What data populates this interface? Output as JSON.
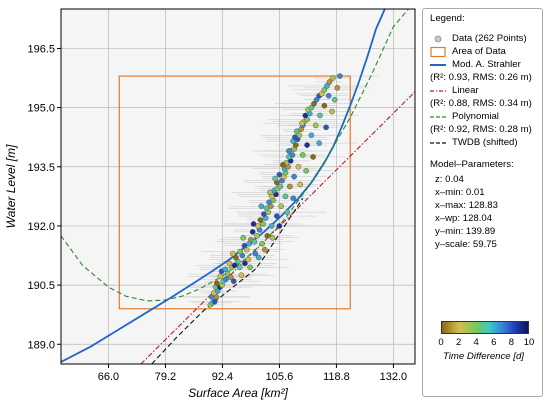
{
  "chart_data": {
    "type": "scatter",
    "xlabel": "Surface Area [km²]",
    "ylabel": "Water Level [m]",
    "xlim": [
      55.0,
      137.0
    ],
    "ylim": [
      188.5,
      197.5
    ],
    "xticks": [
      "66.0",
      "79.2",
      "92.4",
      "105.6",
      "118.8",
      "132.0"
    ],
    "xtick_values": [
      66.0,
      79.2,
      92.4,
      105.6,
      118.8,
      132.0
    ],
    "yticks": [
      "189.0",
      "190.5",
      "192.0",
      "193.5",
      "195.0",
      "196.5"
    ],
    "ytick_values": [
      189.0,
      190.5,
      192.0,
      193.5,
      195.0,
      196.5
    ],
    "grid": true,
    "legend_placement": "right of plot",
    "area_of_data": {
      "x_min": 68.5,
      "x_max": 122.0,
      "y_min": 189.9,
      "y_max": 195.8
    },
    "series": [
      {
        "name": "Data (262 Points)",
        "kind": "points",
        "count": 262,
        "points": [
          [
            89.6,
            190.0,
            3
          ],
          [
            90.1,
            190.05,
            5
          ],
          [
            90.6,
            190.08,
            8
          ],
          [
            91.0,
            190.2,
            1
          ],
          [
            89.9,
            190.2,
            7
          ],
          [
            90.4,
            190.3,
            2
          ],
          [
            91.3,
            190.35,
            6
          ],
          [
            90.8,
            190.45,
            4
          ],
          [
            91.8,
            190.45,
            9
          ],
          [
            92.3,
            190.5,
            3
          ],
          [
            91.1,
            190.55,
            0
          ],
          [
            92.6,
            190.6,
            5
          ],
          [
            93.2,
            190.65,
            7
          ],
          [
            91.9,
            190.72,
            2
          ],
          [
            93.6,
            190.78,
            4
          ],
          [
            92.2,
            190.85,
            8
          ],
          [
            94.3,
            190.7,
            1
          ],
          [
            93.1,
            190.9,
            6
          ],
          [
            94.6,
            190.95,
            3
          ],
          [
            95.2,
            191.0,
            9
          ],
          [
            94.0,
            191.05,
            2
          ],
          [
            96.0,
            191.1,
            5
          ],
          [
            95.5,
            191.2,
            0
          ],
          [
            97.0,
            191.25,
            7
          ],
          [
            96.5,
            191.35,
            4
          ],
          [
            98.0,
            191.4,
            2
          ],
          [
            97.5,
            191.5,
            8
          ],
          [
            98.6,
            191.55,
            6
          ],
          [
            99.0,
            191.65,
            1
          ],
          [
            99.8,
            191.6,
            5
          ],
          [
            100.4,
            191.75,
            3
          ],
          [
            99.4,
            191.85,
            9
          ],
          [
            101.0,
            191.9,
            7
          ],
          [
            100.6,
            192.0,
            2
          ],
          [
            101.8,
            192.05,
            4
          ],
          [
            101.2,
            192.15,
            0
          ],
          [
            102.4,
            192.2,
            6
          ],
          [
            102.0,
            192.3,
            8
          ],
          [
            103.0,
            192.35,
            3
          ],
          [
            102.6,
            192.45,
            5
          ],
          [
            103.6,
            192.5,
            1
          ],
          [
            103.2,
            192.6,
            7
          ],
          [
            104.2,
            192.65,
            4
          ],
          [
            103.8,
            192.75,
            2
          ],
          [
            104.8,
            192.8,
            9
          ],
          [
            104.4,
            192.9,
            6
          ],
          [
            105.2,
            192.95,
            3
          ],
          [
            105.8,
            193.0,
            5
          ],
          [
            105.0,
            193.1,
            0
          ],
          [
            106.2,
            193.15,
            7
          ],
          [
            106.6,
            193.25,
            2
          ],
          [
            105.6,
            193.3,
            8
          ],
          [
            107.0,
            193.35,
            4
          ],
          [
            106.8,
            193.45,
            6
          ],
          [
            107.6,
            193.5,
            1
          ],
          [
            107.2,
            193.6,
            3
          ],
          [
            108.2,
            193.65,
            9
          ],
          [
            107.8,
            193.75,
            5
          ],
          [
            108.6,
            193.8,
            7
          ],
          [
            108.2,
            193.9,
            2
          ],
          [
            109.0,
            193.95,
            4
          ],
          [
            109.4,
            194.05,
            0
          ],
          [
            108.8,
            194.15,
            6
          ],
          [
            109.8,
            194.2,
            8
          ],
          [
            110.2,
            194.3,
            3
          ],
          [
            109.6,
            194.4,
            5
          ],
          [
            110.6,
            194.45,
            1
          ],
          [
            111.0,
            194.55,
            7
          ],
          [
            111.4,
            194.65,
            2
          ],
          [
            112.0,
            194.7,
            4
          ],
          [
            111.6,
            194.8,
            9
          ],
          [
            112.6,
            194.85,
            6
          ],
          [
            112.2,
            194.95,
            3
          ],
          [
            113.0,
            195.0,
            5
          ],
          [
            113.6,
            195.1,
            0
          ],
          [
            114.2,
            195.2,
            7
          ],
          [
            114.8,
            195.3,
            8
          ],
          [
            115.4,
            195.35,
            2
          ],
          [
            116.0,
            195.45,
            4
          ],
          [
            116.6,
            195.55,
            6
          ],
          [
            117.2,
            195.65,
            1
          ],
          [
            118.0,
            195.75,
            3
          ],
          [
            96.4,
            190.95,
            5
          ],
          [
            97.6,
            191.05,
            9
          ],
          [
            98.4,
            191.15,
            2
          ],
          [
            100.0,
            191.3,
            7
          ],
          [
            101.6,
            191.55,
            4
          ],
          [
            102.8,
            191.75,
            0
          ],
          [
            103.8,
            192.0,
            6
          ],
          [
            105.0,
            192.25,
            8
          ],
          [
            106.0,
            192.5,
            3
          ],
          [
            107.0,
            192.75,
            5
          ],
          [
            108.0,
            193.0,
            1
          ],
          [
            109.0,
            193.25,
            7
          ],
          [
            110.0,
            193.5,
            2
          ],
          [
            111.0,
            193.8,
            4
          ],
          [
            112.0,
            194.05,
            9
          ],
          [
            113.0,
            194.3,
            6
          ],
          [
            114.0,
            194.55,
            3
          ],
          [
            115.0,
            194.8,
            5
          ],
          [
            116.0,
            195.05,
            0
          ],
          [
            117.0,
            195.3,
            7
          ],
          [
            95.0,
            190.6,
            8
          ],
          [
            96.8,
            190.75,
            2
          ],
          [
            98.8,
            190.95,
            4
          ],
          [
            100.8,
            191.2,
            6
          ],
          [
            102.2,
            191.4,
            1
          ],
          [
            104.0,
            191.7,
            3
          ],
          [
            105.6,
            192.0,
            9
          ],
          [
            107.4,
            192.35,
            5
          ],
          [
            108.8,
            192.7,
            7
          ],
          [
            110.4,
            193.05,
            2
          ],
          [
            111.8,
            193.4,
            4
          ],
          [
            113.4,
            193.75,
            0
          ],
          [
            114.8,
            194.1,
            6
          ],
          [
            116.4,
            194.5,
            8
          ],
          [
            117.8,
            194.9,
            3
          ],
          [
            118.4,
            195.2,
            5
          ],
          [
            119.0,
            195.5,
            1
          ],
          [
            119.6,
            195.8,
            7
          ],
          [
            94.8,
            191.3,
            2
          ],
          [
            97.2,
            191.7,
            4
          ],
          [
            99.6,
            192.05,
            9
          ],
          [
            101.4,
            192.5,
            6
          ],
          [
            103.4,
            192.85,
            3
          ],
          [
            104.6,
            193.2,
            5
          ],
          [
            106.4,
            193.55,
            0
          ],
          [
            107.8,
            193.9,
            7
          ],
          [
            109.2,
            194.25,
            8
          ],
          [
            110.8,
            194.6,
            2
          ]
        ]
      },
      {
        "name": "Area of Data",
        "kind": "rectangle",
        "color": "#e07b2c"
      },
      {
        "name": "Mod. A. Strahler",
        "stats": "(R²: 0.93, RMS: 0.26 m)",
        "color": "#1f66c9",
        "style": "solid",
        "x": [
          55.0,
          62.0,
          68.0,
          74.0,
          80.0,
          85.0,
          90.0,
          94.0,
          98.0,
          102.0,
          106.0,
          110.0,
          113.0,
          116.0,
          118.0,
          120.0,
          122.0,
          124.0,
          126.0,
          128.0,
          129.0,
          130.0
        ],
        "y": [
          188.55,
          188.95,
          189.35,
          189.75,
          190.15,
          190.5,
          190.85,
          191.15,
          191.5,
          191.85,
          192.25,
          192.7,
          193.1,
          193.6,
          194.0,
          194.5,
          195.05,
          195.65,
          196.3,
          197.0,
          197.25,
          197.5
        ]
      },
      {
        "name": "Linear",
        "stats": "(R²: 0.88, RMS: 0.34 m)",
        "color": "#b22222",
        "style": "dashdot",
        "x": [
          73.5,
          137.0
        ],
        "y": [
          188.5,
          195.4
        ]
      },
      {
        "name": "Polynomial",
        "stats": "(R²: 0.92, RMS: 0.28 m)",
        "color": "#2a8a2a",
        "style": "dashed",
        "x": [
          55.0,
          60.0,
          66.0,
          70.0,
          75.0,
          79.0,
          83.0,
          87.0,
          92.0,
          97.0,
          102.0,
          107.0,
          112.0,
          117.0,
          122.0,
          127.0,
          132.0,
          135.5
        ],
        "y": [
          191.75,
          191.0,
          190.45,
          190.22,
          190.1,
          190.12,
          190.22,
          190.4,
          190.7,
          191.1,
          191.6,
          192.2,
          192.95,
          193.8,
          194.75,
          195.85,
          197.05,
          197.5
        ]
      },
      {
        "name": "TWDB (shifted)",
        "color": "#111111",
        "style": "dashed",
        "x": [
          76.0,
          82.0,
          88.0,
          92.0,
          96.0,
          100.0,
          102.0,
          105.0,
          108.0,
          111.0
        ],
        "y": [
          188.5,
          189.2,
          189.85,
          190.2,
          190.55,
          190.9,
          191.2,
          191.7,
          192.2,
          192.7
        ]
      }
    ],
    "colorbar": {
      "label": "Time Difference [d]",
      "min": 0,
      "max": 10,
      "ticks": [
        "0",
        "2",
        "4",
        "6",
        "8",
        "10"
      ],
      "tick_values": [
        0,
        2,
        4,
        6,
        8,
        10
      ],
      "colormap": "terrain-like (brown → yellow → green → cyan → blue → navy)"
    }
  },
  "legend": {
    "title": "Legend:",
    "items": [
      {
        "label": "Data (262 Points)"
      },
      {
        "label": "Area of Data"
      },
      {
        "label": "Mod. A. Strahler",
        "sub": "(R²: 0.93, RMS: 0.26 m)"
      },
      {
        "label": "Linear",
        "sub": "(R²: 0.88, RMS: 0.34 m)"
      },
      {
        "label": "Polynomial",
        "sub": "(R²: 0.92, RMS: 0.28 m)"
      },
      {
        "label": "TWDB (shifted)"
      }
    ],
    "params_title": "Model–Parameters:",
    "params": [
      "z: 0.04",
      "x–min: 0.01",
      "x–max: 128.83",
      "x–wp: 128.04",
      "y–min: 139.89",
      "y–scale: 59.75"
    ]
  }
}
